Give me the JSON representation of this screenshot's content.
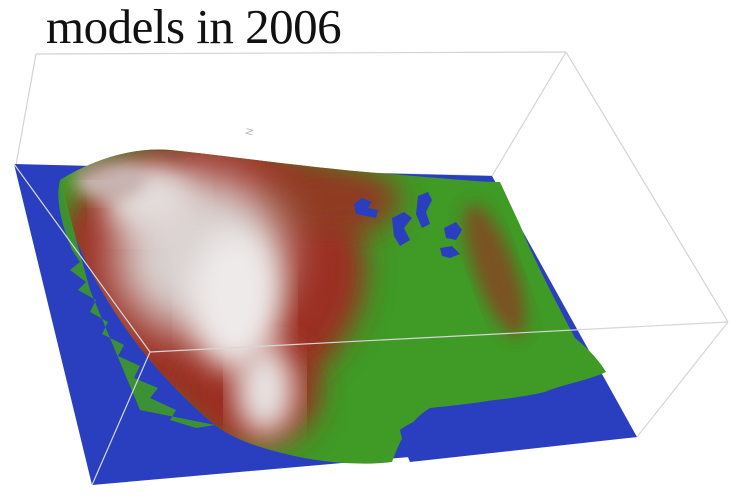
{
  "caption": "models in 2006",
  "colors": {
    "background": "#ffffff",
    "ocean": "#2a3fbf",
    "lowland": "#3f9a26",
    "midland": "#9b2e22",
    "highland": "#d9d2d0",
    "bounding_box": "#cfcfcf"
  }
}
